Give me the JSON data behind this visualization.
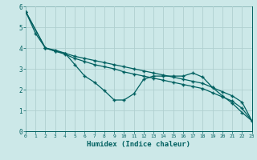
{
  "xlabel": "Humidex (Indice chaleur)",
  "xlim": [
    0,
    23
  ],
  "ylim": [
    0,
    6
  ],
  "xticks": [
    0,
    1,
    2,
    3,
    4,
    5,
    6,
    7,
    8,
    9,
    10,
    11,
    12,
    13,
    14,
    15,
    16,
    17,
    18,
    19,
    20,
    21,
    22,
    23
  ],
  "yticks": [
    0,
    1,
    2,
    3,
    4,
    5,
    6
  ],
  "bg_color": "#cce8e8",
  "grid_color": "#b0d0d0",
  "line_color": "#006060",
  "series": [
    {
      "x": [
        0,
        1,
        2,
        3,
        4,
        5,
        6,
        7,
        8,
        9,
        10,
        11,
        12,
        13,
        14,
        15,
        16,
        17,
        18,
        19,
        20,
        21,
        22,
        23
      ],
      "y": [
        5.75,
        4.7,
        4.0,
        3.85,
        3.75,
        3.2,
        2.65,
        2.35,
        1.95,
        1.5,
        1.5,
        1.8,
        2.5,
        2.65,
        2.65,
        2.65,
        2.65,
        2.8,
        2.6,
        2.1,
        1.7,
        1.35,
        0.9,
        0.5
      ]
    },
    {
      "x": [
        0,
        2,
        3,
        4,
        5,
        6,
        7,
        8,
        9,
        10,
        11,
        12,
        13,
        14,
        15,
        16,
        17,
        18,
        19,
        20,
        21,
        22,
        23
      ],
      "y": [
        5.75,
        4.0,
        3.85,
        3.7,
        3.5,
        3.35,
        3.2,
        3.1,
        3.0,
        2.85,
        2.75,
        2.65,
        2.55,
        2.45,
        2.35,
        2.25,
        2.15,
        2.05,
        1.85,
        1.65,
        1.45,
        1.1,
        0.5
      ]
    },
    {
      "x": [
        0,
        2,
        3,
        4,
        5,
        6,
        7,
        8,
        9,
        10,
        11,
        12,
        13,
        14,
        15,
        16,
        17,
        18,
        19,
        20,
        21,
        22,
        23
      ],
      "y": [
        5.75,
        4.0,
        3.9,
        3.75,
        3.6,
        3.5,
        3.4,
        3.3,
        3.2,
        3.1,
        3.0,
        2.9,
        2.8,
        2.7,
        2.6,
        2.5,
        2.4,
        2.3,
        2.1,
        1.9,
        1.7,
        1.4,
        0.5
      ]
    }
  ]
}
